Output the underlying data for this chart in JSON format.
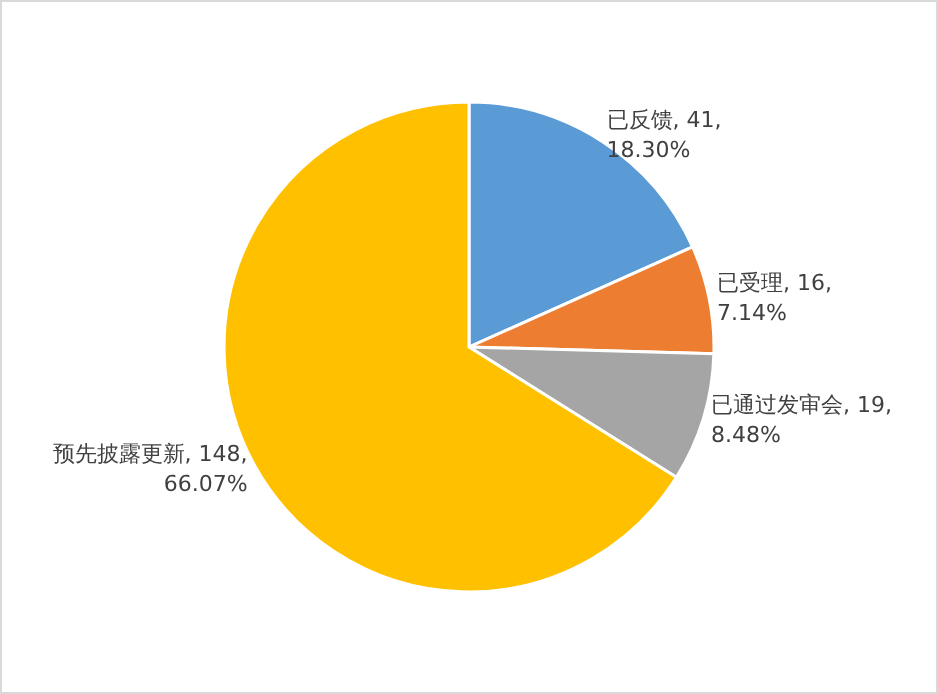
{
  "chart_data": {
    "type": "pie",
    "categories": [
      "已反馈",
      "已受理",
      "已通过发审会",
      "预先披露更新"
    ],
    "values": [
      41,
      16,
      19,
      148
    ],
    "colors": [
      "#5b9bd5",
      "#ed7d31",
      "#a5a5a5",
      "#ffc000"
    ],
    "value_labels": [
      "41, 18.30%",
      "16, 7.14%",
      "19, 8.48%",
      "148, 66.07%"
    ],
    "legend": false
  }
}
